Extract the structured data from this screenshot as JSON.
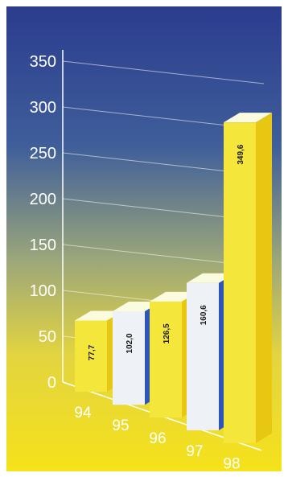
{
  "chart_data": {
    "type": "bar",
    "categories": [
      "94",
      "95",
      "96",
      "97",
      "98"
    ],
    "values": [
      77.7,
      102.0,
      126.5,
      160.6,
      349.6
    ],
    "value_labels": [
      "77,7",
      "102,0",
      "126,5",
      "160,6",
      "349,6"
    ],
    "y_ticks": [
      "0",
      "50",
      "100",
      "150",
      "200",
      "250",
      "300",
      "350"
    ],
    "ylim": [
      0,
      350
    ],
    "title": "",
    "xlabel": "",
    "ylabel": "",
    "grid": true,
    "style": "3d"
  },
  "colors": {
    "background_top": "#2b3c8e",
    "background_bottom": "#f5e21a",
    "bar_yellow_front": "#f4e63a",
    "bar_yellow_side": "#e8c712",
    "bar_white_front": "#eef1f6",
    "bar_blue_side": "#2e55b8",
    "bar_top": "#fbfbe0",
    "axis": "#ffffff"
  }
}
